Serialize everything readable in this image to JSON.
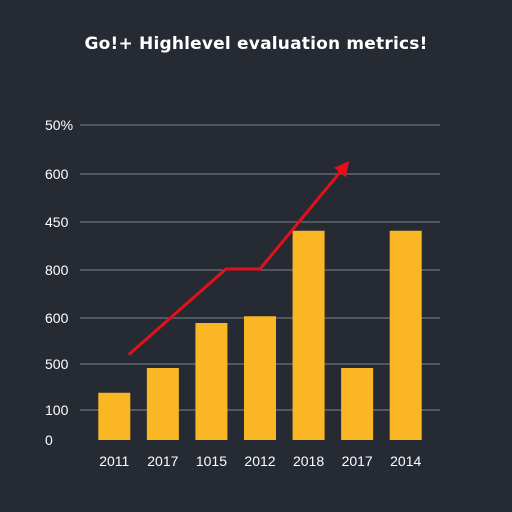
{
  "chart_data": {
    "type": "bar",
    "title": "Go!+ Highlevel evaluation metrics!",
    "y_tick_labels": [
      "0",
      "100",
      "500",
      "600",
      "800",
      "450",
      "600",
      "50%"
    ],
    "categories": [
      "2011",
      "2017",
      "1015",
      "2012",
      "2018",
      "2017",
      "2014"
    ],
    "values": [
      105,
      160,
      260,
      275,
      465,
      160,
      465
    ],
    "ylim": [
      0,
      700
    ],
    "bar_color": "#fbb623",
    "trend_line": {
      "color": "#e3101c",
      "x": [
        0.3,
        2.3,
        3.0,
        4.8
      ],
      "y": [
        190,
        380,
        380,
        615
      ],
      "arrowhead": true
    },
    "grid": true,
    "background": "#252a33"
  }
}
